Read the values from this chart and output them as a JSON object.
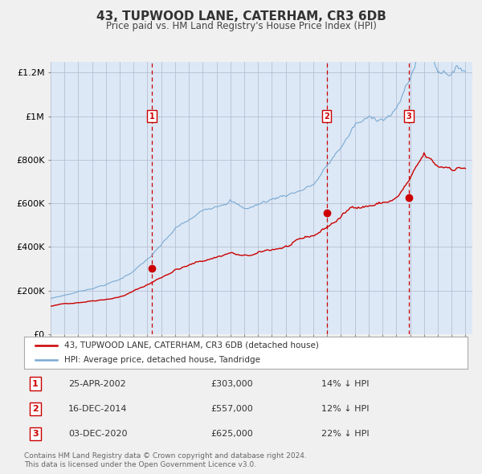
{
  "title": "43, TUPWOOD LANE, CATERHAM, CR3 6DB",
  "subtitle": "Price paid vs. HM Land Registry's House Price Index (HPI)",
  "background_color": "#e8eef7",
  "plot_bg_color": "#dce8f5",
  "fig_bg_color": "#f0f0f0",
  "ylim": [
    0,
    1250000
  ],
  "yticks": [
    0,
    200000,
    400000,
    600000,
    800000,
    1000000,
    1200000
  ],
  "ytick_labels": [
    "£0",
    "£200K",
    "£400K",
    "£600K",
    "£800K",
    "£1M",
    "£1.2M"
  ],
  "year_start": 1995,
  "year_end": 2025,
  "transactions": [
    {
      "date": 2002.32,
      "price": 303000,
      "label": "1"
    },
    {
      "date": 2014.96,
      "price": 557000,
      "label": "2"
    },
    {
      "date": 2020.92,
      "price": 625000,
      "label": "3"
    }
  ],
  "transaction_dates_str": [
    "25-APR-2002",
    "16-DEC-2014",
    "03-DEC-2020"
  ],
  "transaction_prices_str": [
    "£303,000",
    "£557,000",
    "£625,000"
  ],
  "transaction_notes": [
    "14% ↓ HPI",
    "12% ↓ HPI",
    "22% ↓ HPI"
  ],
  "legend_line1": "43, TUPWOOD LANE, CATERHAM, CR3 6DB (detached house)",
  "legend_line2": "HPI: Average price, detached house, Tandridge",
  "footer": "Contains HM Land Registry data © Crown copyright and database right 2024.\nThis data is licensed under the Open Government Licence v3.0.",
  "red_line_color": "#cc0000",
  "blue_line_color": "#7aaad4",
  "dashed_vline_color": "#cc0000",
  "grid_color": "#b0b8cc",
  "marker_color": "#cc0000"
}
